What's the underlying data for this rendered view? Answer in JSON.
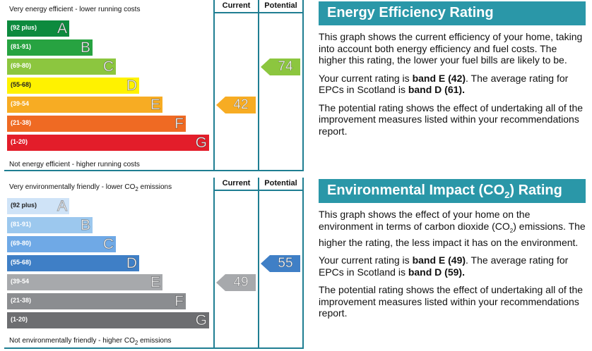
{
  "energy_chart": {
    "top_note": "Very energy efficient - lower running costs",
    "bottom_note": "Not energy efficient - higher running costs",
    "col_current": "Current",
    "col_potential": "Potential",
    "bands": [
      {
        "range": "(92 plus)",
        "letter": "A",
        "color": "#0d8a3e"
      },
      {
        "range": "(81-91)",
        "letter": "B",
        "color": "#27a341"
      },
      {
        "range": "(69-80)",
        "letter": "C",
        "color": "#8cc63f"
      },
      {
        "range": "(55-68)",
        "letter": "D",
        "color": "#fff200"
      },
      {
        "range": "(39-54",
        "letter": "E",
        "color": "#f7ac23"
      },
      {
        "range": "(21-38)",
        "letter": "F",
        "color": "#ef6a23"
      },
      {
        "range": "(1-20)",
        "letter": "G",
        "color": "#e31d2a"
      }
    ],
    "current": {
      "value": "42",
      "band": "E",
      "color": "#f7ac23"
    },
    "potential": {
      "value": "74",
      "band": "C",
      "color": "#8cc63f"
    }
  },
  "env_chart": {
    "top_note_a": "Very environmentally friendly - lower CO",
    "top_note_sub": "2",
    "top_note_b": " emissions",
    "bottom_note_a": "Not environmentally friendly - higher CO",
    "bottom_note_sub": "2",
    "bottom_note_b": " emissions",
    "col_current": "Current",
    "col_potential": "Potential",
    "bands": [
      {
        "range": "(92 plus)",
        "letter": "A",
        "color": "#cfe3f7"
      },
      {
        "range": "(81-91)",
        "letter": "B",
        "color": "#9cc8ee"
      },
      {
        "range": "(69-80)",
        "letter": "C",
        "color": "#6fa9e6"
      },
      {
        "range": "(55-68)",
        "letter": "D",
        "color": "#3f7fc6"
      },
      {
        "range": "(39-54",
        "letter": "E",
        "color": "#a7a9ac"
      },
      {
        "range": "(21-38)",
        "letter": "F",
        "color": "#8b8d90"
      },
      {
        "range": "(1-20)",
        "letter": "G",
        "color": "#6d6e71"
      }
    ],
    "current": {
      "value": "49",
      "band": "E",
      "color": "#a7a9ac"
    },
    "potential": {
      "value": "55",
      "band": "D",
      "color": "#3f7fc6"
    }
  },
  "energy_panel": {
    "heading": "Energy Efficiency Rating",
    "p1": "This graph shows the current efficiency of your home, taking into account both energy efficiency and fuel costs. The higher this rating, the lower your fuel bills are likely to be.",
    "p2_a": "Your current rating is ",
    "p2_b": "band E (42)",
    "p2_c": ". The average rating for EPCs in Scotland is ",
    "p2_d": "band D (61).",
    "p3": "The potential rating shows the effect of undertaking all of the improvement measures listed within your recommendations report."
  },
  "env_panel": {
    "heading_a": "Environmental Impact (CO",
    "heading_sub": "2",
    "heading_b": ") Rating",
    "p1_a": "This graph shows the effect of your home on the environment in terms of carbon dioxide (CO",
    "p1_sub": "2",
    "p1_b": ") emissions. The higher the rating, the less impact it has on the environment.",
    "p2_a": "Your current rating is ",
    "p2_b": "band E (49)",
    "p2_c": ". The average rating for EPCs in Scotland is ",
    "p2_d": "band D (59).",
    "p3": "The potential rating shows the effect of undertaking all of the improvement measures listed within your recommendations report."
  }
}
